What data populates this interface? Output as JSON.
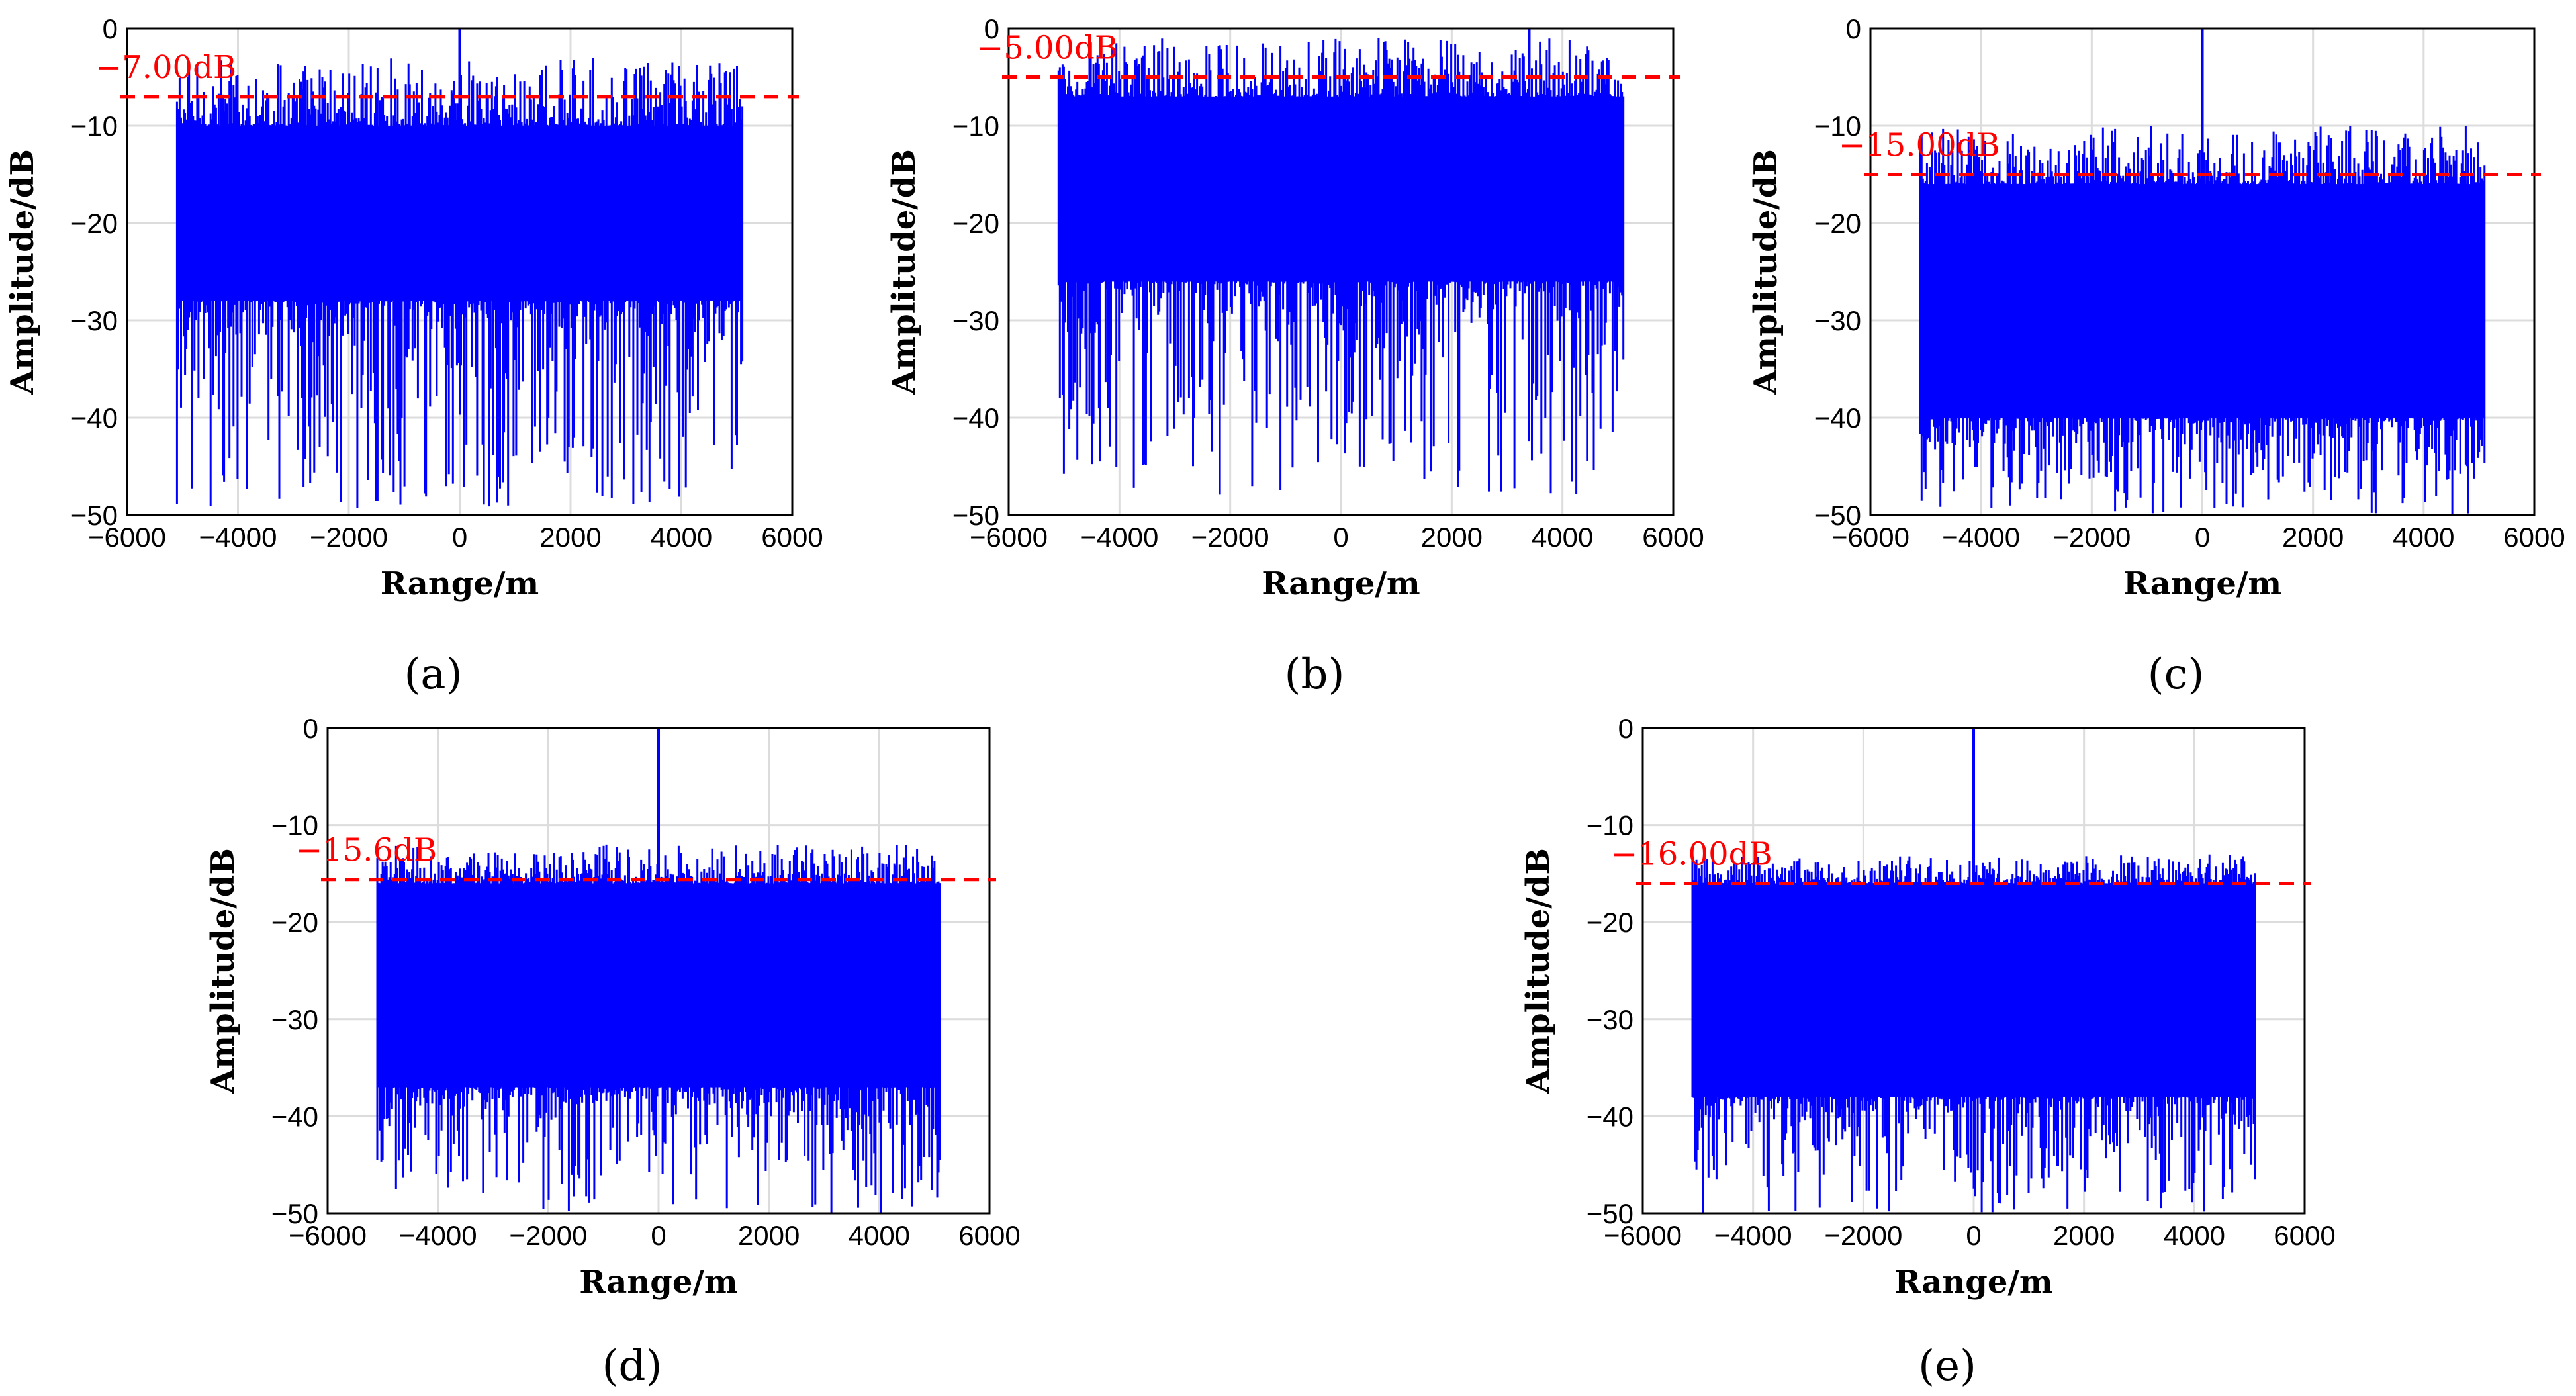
{
  "chart_data": [
    {
      "type": "line",
      "panel": "a",
      "caption": "(a)",
      "xlabel": "Range/m",
      "ylabel": "Amplitude/dB",
      "xlim": [
        -6000,
        6000
      ],
      "ylim": [
        -50,
        0
      ],
      "xticks": [
        -6000,
        -4000,
        -2000,
        0,
        2000,
        4000,
        6000
      ],
      "xtick_labels": [
        "−6000",
        "−4000",
        "−2000",
        "0",
        "2000",
        "4000",
        "6000"
      ],
      "yticks": [
        0,
        -10,
        -20,
        -30,
        -40,
        -50
      ],
      "ytick_labels": [
        "0",
        "−10",
        "−20",
        "−30",
        "−40",
        "−50"
      ],
      "grid": true,
      "signal": {
        "range_min": -5100,
        "range_max": 5100,
        "peak_range": 0,
        "peak_value": 0,
        "band_top": -10,
        "band_bottom": -28,
        "spike_top": -3,
        "dip_bottom": -50
      },
      "threshold": {
        "value": -7.0,
        "label": "−7.00dB",
        "color": "#ff0000",
        "style": "dashed"
      }
    },
    {
      "type": "line",
      "panel": "b",
      "caption": "(b)",
      "xlabel": "Range/m",
      "ylabel": "Amplitude/dB",
      "xlim": [
        -6000,
        6000
      ],
      "ylim": [
        -50,
        0
      ],
      "xticks": [
        -6000,
        -4000,
        -2000,
        0,
        2000,
        4000,
        6000
      ],
      "xtick_labels": [
        "−6000",
        "−4000",
        "−2000",
        "0",
        "2000",
        "4000",
        "6000"
      ],
      "yticks": [
        0,
        -10,
        -20,
        -30,
        -40,
        -50
      ],
      "ytick_labels": [
        "0",
        "−10",
        "−20",
        "−30",
        "−40",
        "−50"
      ],
      "grid": true,
      "signal": {
        "range_min": -5100,
        "range_max": 5100,
        "peak_range": 3400,
        "peak_value": 0,
        "band_top": -7,
        "band_bottom": -26,
        "spike_top": -1,
        "dip_bottom": -48
      },
      "threshold": {
        "value": -5.0,
        "label": "−5.00dB",
        "color": "#ff0000",
        "style": "dashed"
      }
    },
    {
      "type": "line",
      "panel": "c",
      "caption": "(c)",
      "xlabel": "Range/m",
      "ylabel": "Amplitude/dB",
      "xlim": [
        -6000,
        6000
      ],
      "ylim": [
        -50,
        0
      ],
      "xticks": [
        -6000,
        -4000,
        -2000,
        0,
        2000,
        4000,
        6000
      ],
      "xtick_labels": [
        "−6000",
        "−4000",
        "−2000",
        "0",
        "2000",
        "4000",
        "6000"
      ],
      "yticks": [
        0,
        -10,
        -20,
        -30,
        -40,
        -50
      ],
      "ytick_labels": [
        "0",
        "−10",
        "−20",
        "−30",
        "−40",
        "−50"
      ],
      "grid": true,
      "signal": {
        "range_min": -5100,
        "range_max": 5100,
        "peak_range": 0,
        "peak_value": 0,
        "band_top": -16,
        "band_bottom": -40,
        "spike_top": -10,
        "dip_bottom": -50
      },
      "threshold": {
        "value": -15.0,
        "label": "−15.00dB",
        "color": "#ff0000",
        "style": "dashed"
      }
    },
    {
      "type": "line",
      "panel": "d",
      "caption": "(d)",
      "xlabel": "Range/m",
      "ylabel": "Amplitude/dB",
      "xlim": [
        -6000,
        6000
      ],
      "ylim": [
        -50,
        0
      ],
      "xticks": [
        -6000,
        -4000,
        -2000,
        0,
        2000,
        4000,
        6000
      ],
      "xtick_labels": [
        "−6000",
        "−4000",
        "−2000",
        "0",
        "2000",
        "4000",
        "6000"
      ],
      "yticks": [
        0,
        -10,
        -20,
        -30,
        -40,
        -50
      ],
      "ytick_labels": [
        "0",
        "−10",
        "−20",
        "−30",
        "−40",
        "−50"
      ],
      "grid": true,
      "signal": {
        "range_min": -5100,
        "range_max": 5100,
        "peak_range": 0,
        "peak_value": 0,
        "band_top": -16,
        "band_bottom": -37,
        "spike_top": -12,
        "dip_bottom": -50
      },
      "threshold": {
        "value": -15.6,
        "label": "−15.6dB",
        "color": "#ff0000",
        "style": "dashed"
      }
    },
    {
      "type": "line",
      "panel": "e",
      "caption": "(e)",
      "xlabel": "Range/m",
      "ylabel": "Amplitude/dB",
      "xlim": [
        -6000,
        6000
      ],
      "ylim": [
        -50,
        0
      ],
      "xticks": [
        -6000,
        -4000,
        -2000,
        0,
        2000,
        4000,
        6000
      ],
      "xtick_labels": [
        "−6000",
        "−4000",
        "−2000",
        "0",
        "2000",
        "4000",
        "6000"
      ],
      "yticks": [
        0,
        -10,
        -20,
        -30,
        -40,
        -50
      ],
      "ytick_labels": [
        "0",
        "−10",
        "−20",
        "−30",
        "−40",
        "−50"
      ],
      "grid": true,
      "signal": {
        "range_min": -5100,
        "range_max": 5100,
        "peak_range": 0,
        "peak_value": 0,
        "band_top": -16,
        "band_bottom": -38,
        "spike_top": -13,
        "dip_bottom": -50
      },
      "threshold": {
        "value": -16.0,
        "label": "−16.00dB",
        "color": "#ff0000",
        "style": "dashed"
      }
    }
  ],
  "colors": {
    "signal": "#0000ff",
    "threshold": "#ff0000",
    "grid": "#dcdcdc",
    "axes": "#000000"
  }
}
